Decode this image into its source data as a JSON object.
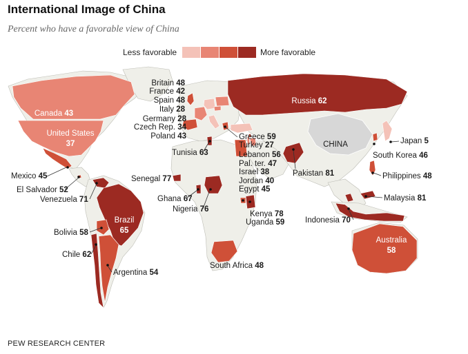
{
  "title": "International Image of China",
  "subtitle": "Percent who have a favorable view of China",
  "legend": {
    "less_label": "Less favorable",
    "more_label": "More favorable",
    "colors": [
      "#f4c2b8",
      "#e88574",
      "#cf5038",
      "#9c2a22"
    ]
  },
  "china_label": "CHINA",
  "source": "PEW RESEARCH CENTER",
  "colors": {
    "land": "#efefe9",
    "china": "#d7d7d7",
    "border": "#bdbdb5",
    "ocean": "#ffffff"
  },
  "countries": [
    {
      "name": "Canada",
      "value": 43
    },
    {
      "name": "United States",
      "value": 37
    },
    {
      "name": "Mexico",
      "value": 45
    },
    {
      "name": "El Salvador",
      "value": 52
    },
    {
      "name": "Venezuela",
      "value": 71
    },
    {
      "name": "Brazil",
      "value": 65
    },
    {
      "name": "Bolivia",
      "value": 58
    },
    {
      "name": "Chile",
      "value": 62
    },
    {
      "name": "Argentina",
      "value": 54
    },
    {
      "name": "Britain",
      "value": 48
    },
    {
      "name": "France",
      "value": 42
    },
    {
      "name": "Spain",
      "value": 48
    },
    {
      "name": "Italy",
      "value": 28
    },
    {
      "name": "Germany",
      "value": 28
    },
    {
      "name": "Czech Rep.",
      "value": 34
    },
    {
      "name": "Poland",
      "value": 43
    },
    {
      "name": "Tunisia",
      "value": 63
    },
    {
      "name": "Senegal",
      "value": 77
    },
    {
      "name": "Ghana",
      "value": 67
    },
    {
      "name": "Nigeria",
      "value": 76
    },
    {
      "name": "Greece",
      "value": 59
    },
    {
      "name": "Turkey",
      "value": 27
    },
    {
      "name": "Lebanon",
      "value": 56
    },
    {
      "name": "Pal. ter.",
      "value": 47
    },
    {
      "name": "Israel",
      "value": 38
    },
    {
      "name": "Jordan",
      "value": 40
    },
    {
      "name": "Egypt",
      "value": 45
    },
    {
      "name": "Kenya",
      "value": 78
    },
    {
      "name": "Uganda",
      "value": 59
    },
    {
      "name": "South Africa",
      "value": 48
    },
    {
      "name": "Russia",
      "value": 62
    },
    {
      "name": "Pakistan",
      "value": 81
    },
    {
      "name": "Japan",
      "value": 5
    },
    {
      "name": "South Korea",
      "value": 46
    },
    {
      "name": "Philippines",
      "value": 48
    },
    {
      "name": "Malaysia",
      "value": 81
    },
    {
      "name": "Indonesia",
      "value": 70
    },
    {
      "name": "Australia",
      "value": 58
    }
  ]
}
